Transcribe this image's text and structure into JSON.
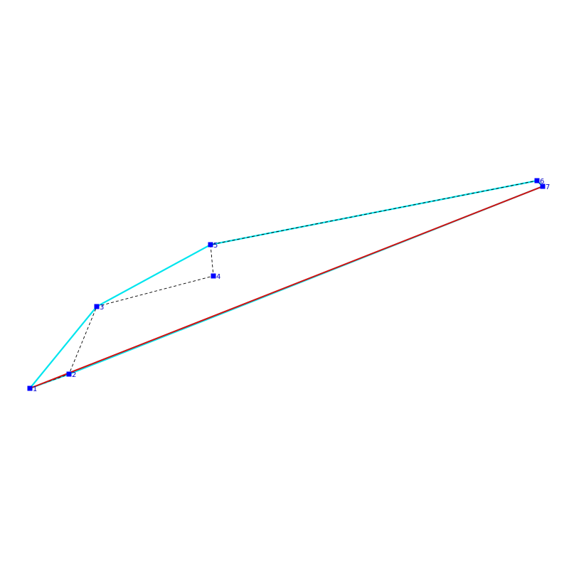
{
  "nodes": [
    {
      "label": "1"
    },
    {
      "label": "2"
    },
    {
      "label": "3"
    },
    {
      "label": "4"
    },
    {
      "label": "5"
    },
    {
      "label": "6"
    },
    {
      "label": "7"
    }
  ]
}
